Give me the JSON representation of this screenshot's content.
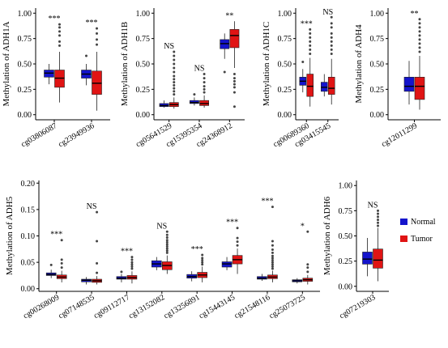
{
  "colors": {
    "normal": "#1414cc",
    "tumor": "#e01414",
    "median": "#000000",
    "axis": "#000000"
  },
  "legend": {
    "items": [
      {
        "label": "Normal",
        "color": "#1414cc"
      },
      {
        "label": "Tumor",
        "color": "#e01414"
      }
    ]
  },
  "chart_data": [
    {
      "type": "box",
      "ylabel": "Methylation of ADH1A",
      "ylim": [
        -0.05,
        1.05
      ],
      "yticks": [
        "0.00",
        "0.25",
        "0.50",
        "0.75",
        "1.00"
      ],
      "categories": [
        "cg03806087",
        "cg23949936"
      ],
      "annotations": [
        "***",
        "***"
      ],
      "series": [
        {
          "name": "Normal",
          "stats": [
            {
              "min": 0.3,
              "q1": 0.37,
              "median": 0.41,
              "q3": 0.44,
              "max": 0.5,
              "outliers": []
            },
            {
              "min": 0.29,
              "q1": 0.36,
              "median": 0.4,
              "q3": 0.44,
              "max": 0.5,
              "outliers": [
                0.58
              ]
            }
          ]
        },
        {
          "name": "Tumor",
          "stats": [
            {
              "min": 0.12,
              "q1": 0.27,
              "median": 0.36,
              "q3": 0.44,
              "max": 0.62,
              "outliers": [
                0.68,
                0.72,
                0.78,
                0.82,
                0.86,
                0.89
              ]
            },
            {
              "min": 0.04,
              "q1": 0.2,
              "median": 0.31,
              "q3": 0.43,
              "max": 0.62,
              "outliers": [
                0.69,
                0.74,
                0.8,
                0.85
              ]
            }
          ]
        }
      ]
    },
    {
      "type": "box",
      "ylabel": "Methylation of ADH1B",
      "ylim": [
        -0.05,
        1.05
      ],
      "yticks": [
        "0.00",
        "0.25",
        "0.50",
        "0.75",
        "1.00"
      ],
      "categories": [
        "cg05641529",
        "cg15395354",
        "cg24368912"
      ],
      "annotations": [
        "NS",
        "NS",
        "**"
      ],
      "series": [
        {
          "name": "Normal",
          "stats": [
            {
              "min": 0.07,
              "q1": 0.08,
              "median": 0.09,
              "q3": 0.11,
              "max": 0.14,
              "outliers": []
            },
            {
              "min": 0.09,
              "q1": 0.11,
              "median": 0.12,
              "q3": 0.14,
              "max": 0.17,
              "outliers": [
                0.2
              ]
            },
            {
              "min": 0.55,
              "q1": 0.65,
              "median": 0.7,
              "q3": 0.74,
              "max": 0.8,
              "outliers": [
                0.42
              ]
            }
          ]
        },
        {
          "name": "Tumor",
          "stats": [
            {
              "min": 0.06,
              "q1": 0.08,
              "median": 0.1,
              "q3": 0.12,
              "max": 0.17,
              "outliers": [
                0.2,
                0.23,
                0.26,
                0.29,
                0.32,
                0.35,
                0.38,
                0.42,
                0.46,
                0.5,
                0.54,
                0.58,
                0.62
              ]
            },
            {
              "min": 0.07,
              "q1": 0.09,
              "median": 0.11,
              "q3": 0.14,
              "max": 0.19,
              "outliers": [
                0.22,
                0.25,
                0.28,
                0.32,
                0.36,
                0.4
              ]
            },
            {
              "min": 0.46,
              "q1": 0.66,
              "median": 0.78,
              "q3": 0.84,
              "max": 0.92,
              "outliers": [
                0.4,
                0.36,
                0.33,
                0.3,
                0.27,
                0.22,
                0.08
              ]
            }
          ]
        }
      ]
    },
    {
      "type": "box",
      "ylabel": "Methylation of ADH1C",
      "ylim": [
        -0.05,
        1.05
      ],
      "yticks": [
        "0.00",
        "0.25",
        "0.50",
        "0.75",
        "1.00"
      ],
      "categories": [
        "cg00689360",
        "cg03415545"
      ],
      "annotations": [
        "***",
        "NS"
      ],
      "series": [
        {
          "name": "Normal",
          "stats": [
            {
              "min": 0.22,
              "q1": 0.29,
              "median": 0.33,
              "q3": 0.37,
              "max": 0.45,
              "outliers": [
                0.52
              ]
            },
            {
              "min": 0.18,
              "q1": 0.23,
              "median": 0.27,
              "q3": 0.32,
              "max": 0.4,
              "outliers": []
            }
          ]
        },
        {
          "name": "Tumor",
          "stats": [
            {
              "min": 0.08,
              "q1": 0.18,
              "median": 0.28,
              "q3": 0.4,
              "max": 0.56,
              "outliers": [
                0.6,
                0.64,
                0.68,
                0.72,
                0.76,
                0.8,
                0.84
              ]
            },
            {
              "min": 0.1,
              "q1": 0.2,
              "median": 0.26,
              "q3": 0.37,
              "max": 0.55,
              "outliers": [
                0.6,
                0.64,
                0.68,
                0.72,
                0.76,
                0.8,
                0.86,
                0.9,
                0.96
              ]
            }
          ]
        }
      ]
    },
    {
      "type": "box",
      "ylabel": "Methylation of ADH4",
      "ylim": [
        -0.05,
        1.05
      ],
      "yticks": [
        "0.00",
        "0.25",
        "0.50",
        "0.75",
        "1.00"
      ],
      "categories": [
        "cg12011299"
      ],
      "annotations": [
        "**"
      ],
      "series": [
        {
          "name": "Normal",
          "stats": [
            {
              "min": 0.1,
              "q1": 0.23,
              "median": 0.28,
              "q3": 0.37,
              "max": 0.53,
              "outliers": []
            }
          ]
        },
        {
          "name": "Tumor",
          "stats": [
            {
              "min": 0.05,
              "q1": 0.15,
              "median": 0.28,
              "q3": 0.37,
              "max": 0.58,
              "outliers": [
                0.62,
                0.66,
                0.7,
                0.74,
                0.78,
                0.82,
                0.86,
                0.9,
                0.94
              ]
            }
          ]
        }
      ]
    },
    {
      "type": "box",
      "ylabel": "Methylation of ADH5",
      "ylim": [
        -0.005,
        0.205
      ],
      "yticks": [
        "0.00",
        "0.05",
        "0.10",
        "0.15",
        "0.20"
      ],
      "categories": [
        "cg00268009",
        "cg07148535",
        "cg09112717",
        "cg13152082",
        "cg13256891",
        "cg15443145",
        "cg21548116",
        "cg25073725"
      ],
      "annotations": [
        "***",
        "NS",
        "***",
        "NS",
        "***",
        "***",
        "***",
        "*"
      ],
      "series": [
        {
          "name": "Normal",
          "stats": [
            {
              "min": 0.02,
              "q1": 0.025,
              "median": 0.027,
              "q3": 0.03,
              "max": 0.036,
              "outliers": [
                0.045
              ]
            },
            {
              "min": 0.008,
              "q1": 0.013,
              "median": 0.016,
              "q3": 0.018,
              "max": 0.022,
              "outliers": []
            },
            {
              "min": 0.012,
              "q1": 0.018,
              "median": 0.02,
              "q3": 0.023,
              "max": 0.028,
              "outliers": [
                0.032
              ]
            },
            {
              "min": 0.035,
              "q1": 0.041,
              "median": 0.047,
              "q3": 0.053,
              "max": 0.06,
              "outliers": []
            },
            {
              "min": 0.014,
              "q1": 0.02,
              "median": 0.023,
              "q3": 0.027,
              "max": 0.033,
              "outliers": []
            },
            {
              "min": 0.035,
              "q1": 0.041,
              "median": 0.047,
              "q3": 0.051,
              "max": 0.06,
              "outliers": []
            },
            {
              "min": 0.015,
              "q1": 0.018,
              "median": 0.02,
              "q3": 0.023,
              "max": 0.028,
              "outliers": []
            },
            {
              "min": 0.01,
              "q1": 0.013,
              "median": 0.015,
              "q3": 0.017,
              "max": 0.02,
              "outliers": []
            }
          ]
        },
        {
          "name": "Tumor",
          "stats": [
            {
              "min": 0.012,
              "q1": 0.019,
              "median": 0.022,
              "q3": 0.026,
              "max": 0.034,
              "outliers": [
                0.04,
                0.048,
                0.055,
                0.092
              ]
            },
            {
              "min": 0.008,
              "q1": 0.012,
              "median": 0.015,
              "q3": 0.018,
              "max": 0.024,
              "outliers": [
                0.03,
                0.048,
                0.09,
                0.145
              ]
            },
            {
              "min": 0.01,
              "q1": 0.018,
              "median": 0.021,
              "q3": 0.025,
              "max": 0.033,
              "outliers": [
                0.038,
                0.042,
                0.046,
                0.05,
                0.055,
                0.06
              ]
            },
            {
              "min": 0.028,
              "q1": 0.036,
              "median": 0.044,
              "q3": 0.051,
              "max": 0.063,
              "outliers": [
                0.068,
                0.072,
                0.076,
                0.08,
                0.084,
                0.088,
                0.092,
                0.097,
                0.102,
                0.108
              ]
            },
            {
              "min": 0.012,
              "q1": 0.021,
              "median": 0.026,
              "q3": 0.031,
              "max": 0.042,
              "outliers": [
                0.046,
                0.05,
                0.054,
                0.058,
                0.064
              ]
            },
            {
              "min": 0.028,
              "q1": 0.047,
              "median": 0.055,
              "q3": 0.063,
              "max": 0.076,
              "outliers": [
                0.082,
                0.089,
                0.096,
                0.115
              ]
            },
            {
              "min": 0.012,
              "q1": 0.019,
              "median": 0.022,
              "q3": 0.026,
              "max": 0.034,
              "outliers": [
                0.038,
                0.042,
                0.046,
                0.05,
                0.054,
                0.058,
                0.062,
                0.068,
                0.074,
                0.082,
                0.09,
                0.155
              ]
            },
            {
              "min": 0.008,
              "q1": 0.014,
              "median": 0.017,
              "q3": 0.02,
              "max": 0.026,
              "outliers": [
                0.032,
                0.04,
                0.046,
                0.108
              ]
            }
          ]
        }
      ]
    },
    {
      "type": "box",
      "ylabel": "Methylation of ADH6",
      "ylim": [
        -0.05,
        1.05
      ],
      "yticks": [
        "0.00",
        "0.25",
        "0.50",
        "0.75",
        "1.00"
      ],
      "categories": [
        "cg07219303"
      ],
      "annotations": [
        "NS"
      ],
      "series": [
        {
          "name": "Normal",
          "stats": [
            {
              "min": 0.1,
              "q1": 0.22,
              "median": 0.27,
              "q3": 0.34,
              "max": 0.48,
              "outliers": []
            }
          ]
        },
        {
          "name": "Tumor",
          "stats": [
            {
              "min": 0.05,
              "q1": 0.18,
              "median": 0.26,
              "q3": 0.37,
              "max": 0.58,
              "outliers": [
                0.6,
                0.63,
                0.66,
                0.69,
                0.72,
                0.75
              ]
            }
          ]
        }
      ]
    }
  ]
}
